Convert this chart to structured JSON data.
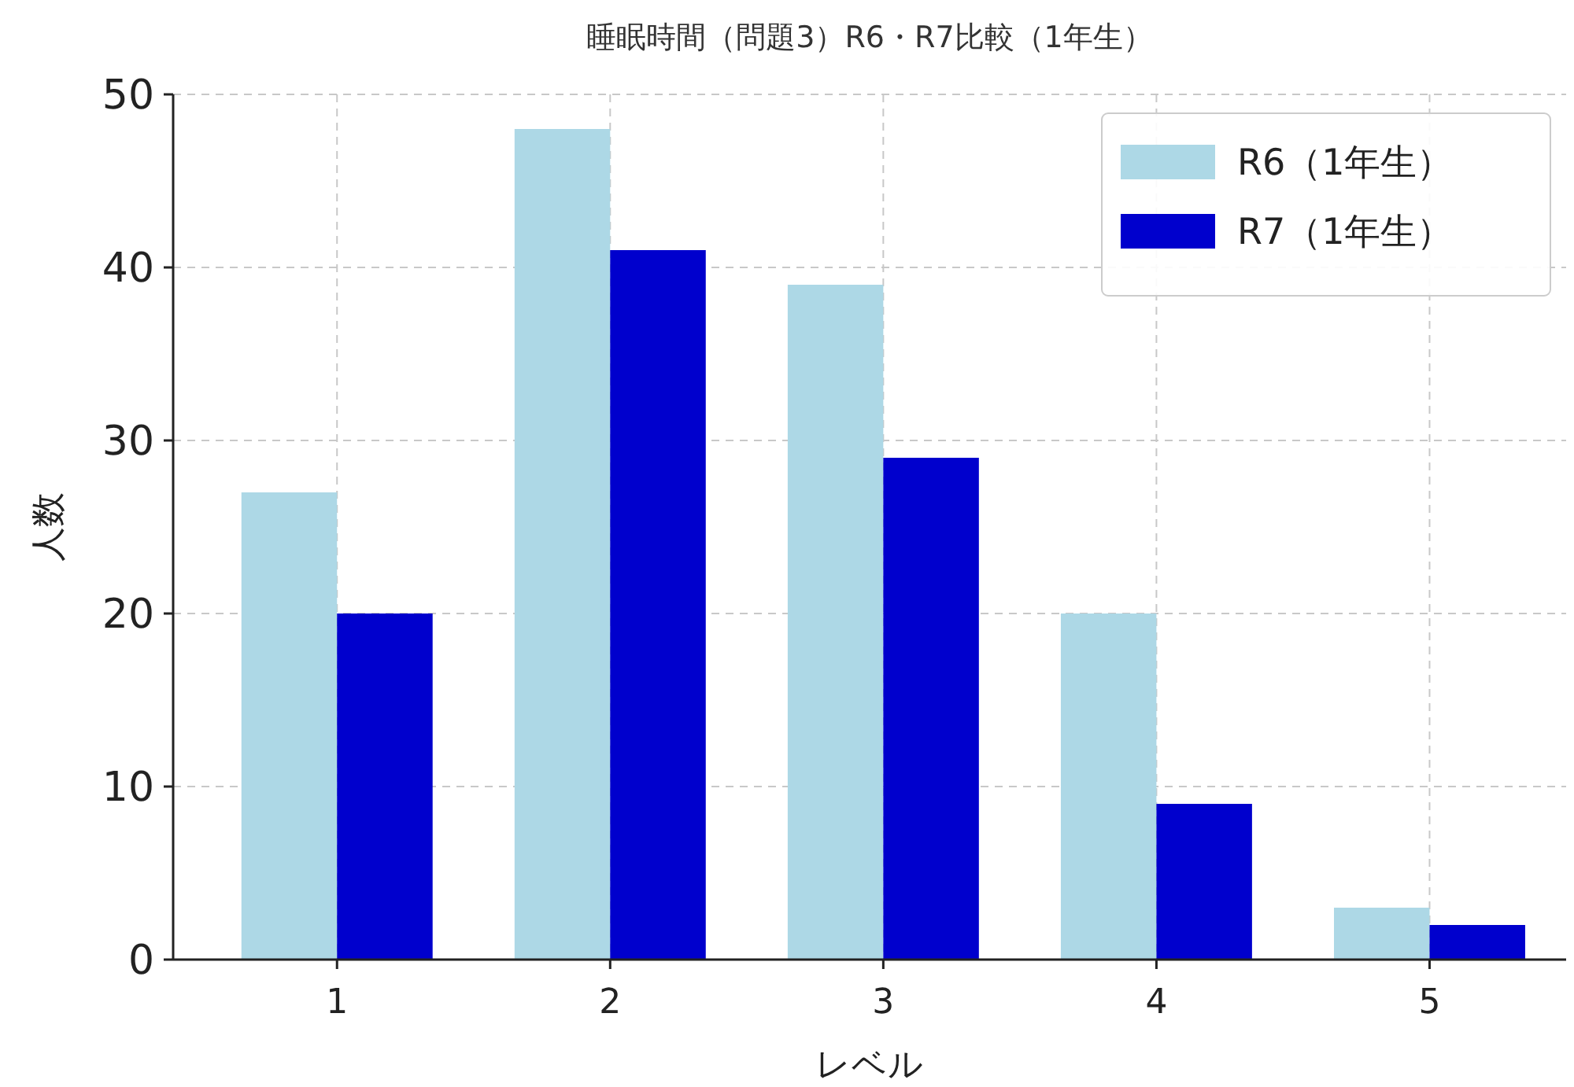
{
  "chart_data": {
    "type": "bar",
    "title": "睡眠時間（問題3）R6・R7比較（1年生）",
    "xlabel": "レベル",
    "ylabel": "人数",
    "categories": [
      "1",
      "2",
      "3",
      "4",
      "5"
    ],
    "series": [
      {
        "name": "R6（1年生）",
        "color": "#add8e6",
        "values": [
          27,
          48,
          39,
          20,
          3
        ]
      },
      {
        "name": "R7（1年生）",
        "color": "#0000cd",
        "values": [
          20,
          41,
          29,
          9,
          2
        ]
      }
    ],
    "ylim": [
      0,
      50
    ],
    "yticks": [
      0,
      10,
      20,
      30,
      40,
      50
    ],
    "grid": true,
    "legend": "top right"
  }
}
